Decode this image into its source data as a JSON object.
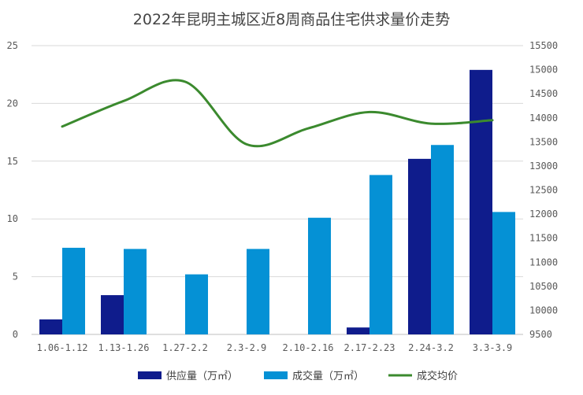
{
  "chart_data": {
    "type": "bar",
    "title": "2022年昆明主城区近8周商品住宅供求量价走势",
    "categories": [
      "1.06-1.12",
      "1.13-1.26",
      "1.27-2.2",
      "2.3-2.9",
      "2.10-2.16",
      "2.17-2.23",
      "2.24-3.2",
      "3.3-3.9"
    ],
    "series": [
      {
        "name": "供应量（万㎡）",
        "axis": "left",
        "type": "bar",
        "color": "#0F1C8C",
        "values": [
          1.3,
          3.4,
          null,
          null,
          null,
          0.6,
          15.2,
          22.9
        ]
      },
      {
        "name": "成交量（万㎡）",
        "axis": "left",
        "type": "bar",
        "color": "#0591D5",
        "values": [
          7.5,
          7.4,
          5.2,
          7.4,
          10.1,
          13.8,
          16.4,
          10.6
        ]
      },
      {
        "name": "成交均价",
        "axis": "right",
        "type": "line",
        "color": "#3B8A2E",
        "values": [
          13820,
          14350,
          14750,
          13450,
          13780,
          14120,
          13880,
          13950
        ]
      }
    ],
    "y_left": {
      "min": 0,
      "max": 25,
      "ticks": [
        "0",
        "5",
        "10",
        "15",
        "20",
        "25"
      ]
    },
    "y_right": {
      "min": 9500,
      "max": 15500,
      "ticks": [
        "9500",
        "10000",
        "10500",
        "11000",
        "11500",
        "12000",
        "12500",
        "13000",
        "13500",
        "14000",
        "14500",
        "15000",
        "15500"
      ]
    },
    "grid": true,
    "legend_position": "bottom"
  }
}
